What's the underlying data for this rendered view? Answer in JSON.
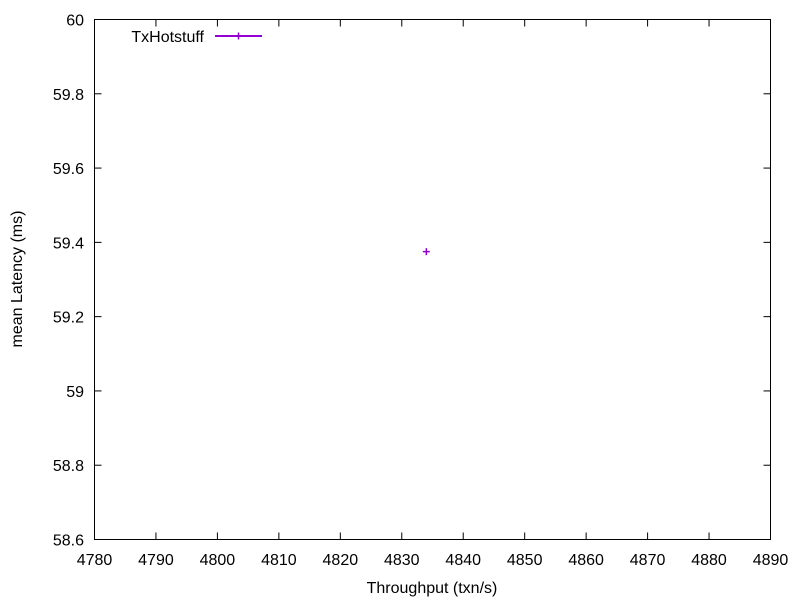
{
  "chart_data": {
    "type": "scatter",
    "xlabel": "Throughput (txn/s)",
    "ylabel": "mean Latency (ms)",
    "xlim": [
      4780,
      4890
    ],
    "ylim": [
      58.6,
      60
    ],
    "x_ticks": [
      4780,
      4790,
      4800,
      4810,
      4820,
      4830,
      4840,
      4850,
      4860,
      4870,
      4880,
      4890
    ],
    "y_ticks": [
      58.6,
      58.8,
      59,
      59.2,
      59.4,
      59.6,
      59.8,
      60
    ],
    "y_tick_labels": [
      "58.6",
      "58.8",
      "59",
      "59.2",
      "59.4",
      "59.6",
      "59.8",
      "60"
    ],
    "legend_position": "top-left",
    "grid": false,
    "series": [
      {
        "name": "TxHotstuff",
        "color": "#9400d3",
        "marker": "plus",
        "points": [
          {
            "x": 4834,
            "y": 59.375
          }
        ]
      }
    ]
  }
}
